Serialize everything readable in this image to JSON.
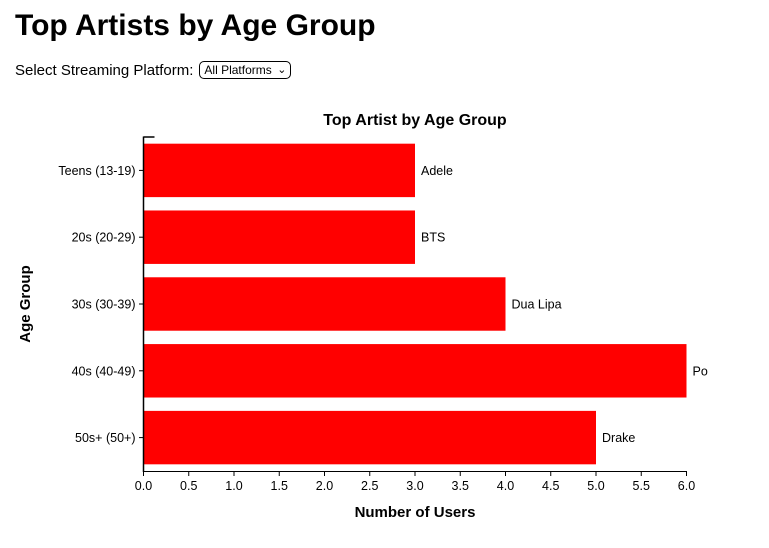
{
  "page": {
    "heading": "Top Artists by Age Group"
  },
  "controls": {
    "platform_label": "Select Streaming Platform:",
    "platform_selected": "All Platforms"
  },
  "icons": {
    "chevron_down": "⌄"
  },
  "chart_data": {
    "type": "bar",
    "orientation": "horizontal",
    "title": "Top Artist by Age Group",
    "xlabel": "Number of Users",
    "ylabel": "Age Group",
    "categories": [
      "Teens (13-19)",
      "20s (20-29)",
      "30s (30-39)",
      "40s (40-49)",
      "50s+ (50+)"
    ],
    "values": [
      3,
      3,
      4,
      6,
      5
    ],
    "bar_labels": [
      "Adele",
      "BTS",
      "Dua Lipa",
      "Po",
      "Drake"
    ],
    "bar_color": "#ff0000",
    "axis_color": "#000000",
    "xlim": [
      0,
      6
    ],
    "xtick_step": 0.5,
    "grid": false,
    "legend": null
  }
}
